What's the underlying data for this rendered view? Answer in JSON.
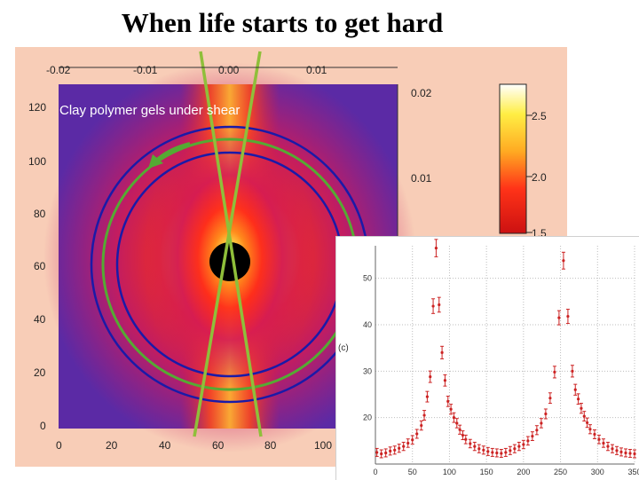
{
  "page_title": "When life starts to get hard",
  "colors": {
    "panel_bg": "#f8cdb7",
    "ring_blue": "#1a1aa8",
    "ring_green": "#55aa33",
    "sector_line": "#8fbf3a",
    "inset_marker": "#cc2222"
  },
  "chart_data": [
    {
      "type": "heatmap",
      "title": "",
      "annotation": "Clay polymer gels under shear",
      "x_pixel_ticks": [
        "0",
        "20",
        "40",
        "60",
        "80",
        "100"
      ],
      "y_pixel_ticks": [
        "0",
        "20",
        "40",
        "60",
        "80",
        "100",
        "120"
      ],
      "q_top_ticks": [
        "-0.02",
        "-0.01",
        "0.00",
        "0.01"
      ],
      "q_right_ticks": [
        "0.02",
        "0.01"
      ],
      "colorbar_ticks": [
        "2.5",
        "2.0",
        "1.5"
      ],
      "colormap": "black-purple-red-yellow-white",
      "xlim": [
        0,
        128
      ],
      "ylim": [
        0,
        128
      ]
    },
    {
      "type": "scatter",
      "title": "",
      "ylabel": "(c)",
      "x_ticks": [
        "0",
        "50",
        "100",
        "150",
        "200",
        "250",
        "300",
        "350"
      ],
      "y_ticks": [
        "20",
        "30",
        "40",
        "50"
      ],
      "xlim": [
        0,
        350
      ],
      "ylim": [
        10,
        57
      ],
      "grid": true,
      "series": [
        {
          "x": [
            2,
            8,
            14,
            20,
            26,
            32,
            38,
            44,
            50,
            56,
            62,
            66,
            70,
            74,
            78,
            82,
            86,
            90,
            94,
            98,
            102,
            106,
            110,
            114,
            118,
            122,
            128,
            134,
            140,
            146,
            152,
            158,
            164,
            170,
            176,
            182,
            188,
            194,
            200,
            206,
            212,
            218,
            224,
            230,
            236,
            242,
            248,
            254,
            260,
            266,
            270,
            274,
            278,
            282,
            286,
            290,
            296,
            302,
            308,
            314,
            320,
            326,
            332,
            338,
            344,
            350
          ],
          "y": [
            12.5,
            12.2,
            12.4,
            12.8,
            13.0,
            13.4,
            13.8,
            14.5,
            15.2,
            16.5,
            18.3,
            20.5,
            24.5,
            28.8,
            44.0,
            56.5,
            44.3,
            34.0,
            28.0,
            23.5,
            21.8,
            20.0,
            18.8,
            17.4,
            16.2,
            15.3,
            14.4,
            13.8,
            13.3,
            13.0,
            12.7,
            12.5,
            12.4,
            12.3,
            12.5,
            12.9,
            13.3,
            13.8,
            14.2,
            15.0,
            16.0,
            17.3,
            18.8,
            20.8,
            24.2,
            29.8,
            41.5,
            53.8,
            41.8,
            30.0,
            26.0,
            24.0,
            22.0,
            20.3,
            18.9,
            17.5,
            16.4,
            15.3,
            14.5,
            13.8,
            13.3,
            12.9,
            12.6,
            12.4,
            12.3,
            12.2
          ]
        }
      ]
    }
  ]
}
